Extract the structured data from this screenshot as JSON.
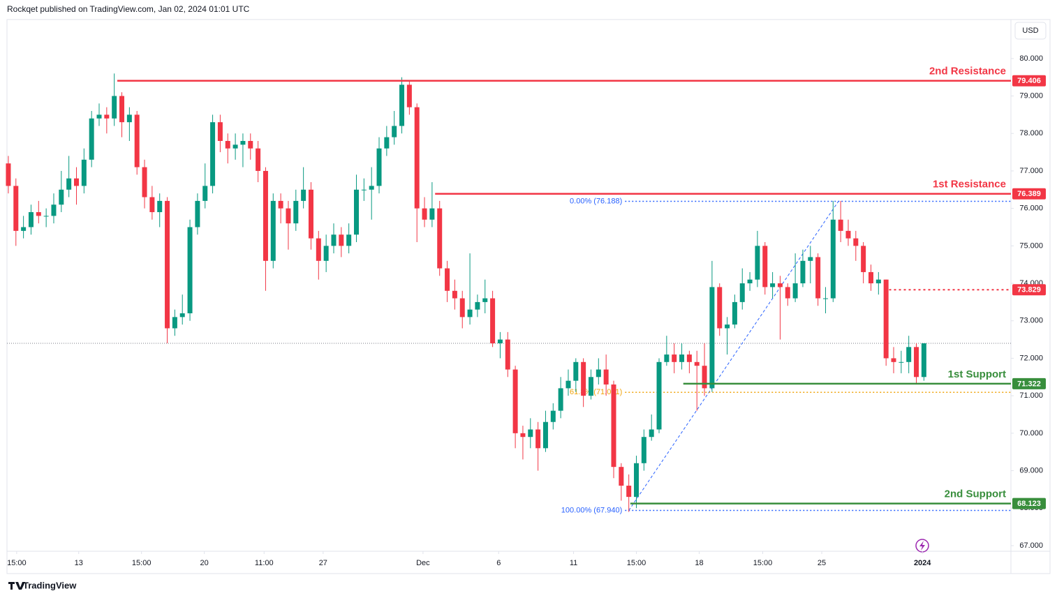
{
  "header": "Rockqet published on TradingView.com, Jan 02, 2024 01:01 UTC",
  "brand": "TradingView",
  "chart_data": {
    "type": "candlestick",
    "currency": "USD",
    "up_color": "#089981",
    "down_color": "#f23645",
    "open": [
      77.2,
      76.6,
      75.4,
      75.5,
      75.9,
      75.8,
      75.8,
      76.1,
      76.5,
      76.8,
      76.6,
      77.3,
      78.4,
      78.5,
      78.4,
      79.0,
      78.3,
      78.5,
      77.1,
      76.3,
      75.9,
      76.2,
      72.8,
      73.1,
      73.2,
      75.5,
      76.2,
      76.6,
      78.3,
      77.8,
      77.6,
      77.7,
      77.8,
      77.6,
      77.0,
      74.6,
      76.2,
      76.0,
      75.6,
      76.2,
      76.5,
      75.2,
      74.6,
      75.0,
      75.3,
      75.0,
      75.3,
      76.5,
      76.5,
      76.6,
      77.6,
      77.9,
      78.2,
      79.3,
      78.7,
      76.0,
      75.7,
      76.0,
      74.4,
      73.8,
      73.6,
      73.1,
      73.3,
      73.5,
      73.6,
      72.4,
      72.5,
      71.7,
      70.0,
      69.9,
      70.1,
      69.6,
      70.3,
      70.6,
      71.2,
      71.4,
      71.9,
      71.0,
      71.5,
      71.7,
      71.3,
      69.1,
      68.6,
      68.3,
      69.2,
      69.9,
      70.1,
      71.9,
      72.1,
      71.9,
      72.1,
      71.9,
      71.8,
      71.2,
      73.9,
      72.8,
      72.9,
      73.5,
      74.0,
      74.1,
      75.0,
      73.9,
      74.0,
      73.9,
      73.6,
      74.0,
      74.6,
      74.7,
      73.6,
      73.6,
      75.7,
      75.4,
      75.2,
      75.0,
      74.3,
      74.0,
      74.1,
      72.0,
      71.9,
      71.9,
      72.3,
      71.5
    ],
    "high": [
      77.4,
      76.8,
      75.8,
      76.1,
      76.2,
      76.0,
      76.4,
      77.0,
      77.4,
      77.1,
      77.6,
      78.6,
      78.8,
      78.7,
      79.6,
      79.1,
      78.7,
      78.6,
      77.3,
      76.6,
      76.4,
      76.3,
      73.3,
      73.7,
      75.7,
      76.4,
      77.2,
      78.5,
      78.5,
      78.0,
      78.0,
      78.0,
      78.0,
      77.8,
      77.1,
      76.4,
      76.4,
      76.2,
      76.5,
      77.1,
      76.7,
      75.4,
      75.3,
      75.6,
      75.5,
      75.6,
      76.9,
      76.8,
      77.1,
      77.9,
      78.2,
      78.6,
      79.5,
      79.4,
      78.8,
      76.3,
      76.7,
      76.2,
      74.6,
      74.1,
      73.8,
      74.8,
      73.7,
      74.1,
      73.8,
      72.7,
      72.7,
      71.8,
      70.2,
      70.4,
      70.3,
      70.6,
      70.8,
      71.5,
      71.7,
      72.0,
      72.0,
      71.7,
      72.0,
      72.1,
      71.4,
      69.2,
      68.9,
      69.4,
      70.1,
      70.5,
      72.0,
      72.6,
      72.4,
      72.4,
      72.2,
      72.2,
      72.4,
      74.6,
      74.0,
      73.1,
      73.7,
      74.4,
      74.3,
      75.4,
      75.1,
      74.3,
      74.2,
      74.0,
      74.8,
      74.9,
      75.0,
      74.8,
      73.9,
      76.2,
      76.2,
      75.7,
      75.4,
      75.1,
      74.5,
      74.3,
      74.1,
      72.3,
      72.2,
      72.6,
      72.4,
      72.4
    ],
    "low": [
      76.4,
      75.0,
      75.2,
      75.3,
      75.6,
      75.5,
      75.6,
      75.9,
      76.3,
      76.1,
      76.4,
      77.1,
      78.2,
      78.0,
      78.2,
      77.9,
      77.8,
      76.9,
      76.0,
      75.7,
      75.5,
      72.4,
      72.6,
      72.9,
      73.0,
      75.3,
      76.0,
      76.4,
      77.5,
      77.2,
      77.3,
      77.1,
      77.3,
      76.7,
      73.8,
      74.4,
      75.6,
      74.9,
      75.4,
      76.0,
      74.9,
      74.1,
      74.3,
      74.8,
      74.7,
      74.8,
      75.1,
      76.2,
      75.7,
      76.4,
      77.4,
      77.7,
      78.0,
      78.5,
      75.1,
      75.5,
      75.5,
      74.2,
      73.5,
      73.3,
      72.8,
      72.9,
      73.1,
      73.2,
      72.3,
      72.0,
      71.5,
      69.6,
      69.3,
      69.6,
      69.0,
      69.5,
      70.1,
      70.4,
      71.0,
      71.1,
      70.7,
      70.9,
      71.3,
      71.0,
      68.8,
      68.2,
      67.9,
      68.0,
      69.0,
      69.8,
      70.0,
      71.8,
      71.6,
      71.7,
      71.6,
      70.6,
      71.0,
      71.1,
      72.6,
      72.1,
      72.8,
      73.3,
      73.8,
      73.9,
      73.7,
      73.6,
      72.5,
      73.4,
      73.5,
      73.9,
      74.0,
      73.4,
      73.2,
      73.5,
      75.1,
      75.0,
      74.6,
      74.0,
      73.8,
      73.7,
      71.8,
      71.6,
      71.6,
      71.6,
      71.3,
      71.4
    ],
    "close": [
      76.6,
      75.4,
      75.5,
      75.9,
      75.8,
      75.8,
      76.1,
      76.5,
      76.8,
      76.6,
      77.3,
      78.4,
      78.5,
      78.4,
      79.0,
      78.3,
      78.5,
      77.1,
      76.3,
      75.9,
      76.2,
      72.8,
      73.1,
      73.2,
      75.5,
      76.2,
      76.6,
      78.3,
      77.8,
      77.6,
      77.7,
      77.8,
      77.6,
      77.0,
      74.6,
      76.2,
      76.0,
      75.6,
      76.2,
      76.5,
      75.2,
      74.6,
      75.0,
      75.3,
      75.0,
      75.3,
      76.5,
      76.5,
      76.6,
      77.6,
      77.9,
      78.2,
      79.3,
      78.7,
      76.0,
      75.7,
      76.0,
      74.4,
      73.8,
      73.6,
      73.1,
      73.3,
      73.5,
      73.6,
      72.4,
      72.5,
      71.7,
      70.0,
      69.9,
      70.1,
      69.6,
      70.3,
      70.6,
      71.2,
      71.4,
      71.9,
      71.0,
      71.5,
      71.7,
      71.3,
      69.1,
      68.6,
      68.3,
      69.2,
      69.9,
      70.1,
      71.9,
      72.1,
      71.9,
      72.1,
      71.9,
      71.8,
      71.2,
      73.9,
      72.8,
      72.9,
      73.5,
      74.0,
      74.1,
      75.0,
      73.9,
      74.0,
      73.9,
      73.6,
      74.0,
      74.6,
      74.7,
      73.6,
      73.6,
      75.7,
      75.4,
      75.2,
      75.0,
      74.3,
      74.0,
      74.1,
      72.0,
      71.9,
      71.9,
      72.3,
      71.5,
      72.4
    ],
    "xlim": [
      -0.18,
      132.5
    ],
    "xticks": [
      {
        "value": 1.1,
        "label": "15:00"
      },
      {
        "value": 9.3,
        "label": "13"
      },
      {
        "value": 17.6,
        "label": "15:00"
      },
      {
        "value": 25.9,
        "label": "20"
      },
      {
        "value": 33.8,
        "label": "11:00"
      },
      {
        "value": 41.6,
        "label": "27"
      },
      {
        "value": 54.8,
        "label": "Dec"
      },
      {
        "value": 64.8,
        "label": "6"
      },
      {
        "value": 74.7,
        "label": "11"
      },
      {
        "value": 83.0,
        "label": "15:00"
      },
      {
        "value": 91.3,
        "label": "18"
      },
      {
        "value": 99.7,
        "label": "15:00"
      },
      {
        "value": 107.5,
        "label": "25"
      },
      {
        "value": 120.8,
        "label": "2024"
      }
    ],
    "ylim": [
      66.85,
      81.04
    ],
    "yticks": [
      {
        "value": 67,
        "label": "67.000"
      },
      {
        "value": 68,
        "label": "68.000"
      },
      {
        "value": 69,
        "label": "69.000"
      },
      {
        "value": 70,
        "label": "70.000"
      },
      {
        "value": 71,
        "label": "71.000"
      },
      {
        "value": 72,
        "label": "72.000"
      },
      {
        "value": 73,
        "label": "73.000"
      },
      {
        "value": 74,
        "label": "74.000"
      },
      {
        "value": 75,
        "label": "75.000"
      },
      {
        "value": 76,
        "label": "76.000"
      },
      {
        "value": 77,
        "label": "77.000"
      },
      {
        "value": 78,
        "label": "78.000"
      },
      {
        "value": 79,
        "label": "79.000"
      },
      {
        "value": 80,
        "label": "80.000"
      }
    ],
    "levels": [
      {
        "name": "2nd Resistance",
        "value": 79.406,
        "from": 14.4,
        "color": "#f23645"
      },
      {
        "name": "1st Resistance",
        "value": 76.389,
        "from": 56.4,
        "color": "#f23645"
      },
      {
        "value": 73.829,
        "from": 116.4,
        "color": "#f23645",
        "dashed": true
      },
      {
        "name": "1st Support",
        "value": 71.322,
        "from": 89.2,
        "color": "#388e3c"
      },
      {
        "name": "2nd Support",
        "value": 68.123,
        "from": 82.2,
        "color": "#388e3c"
      }
    ],
    "fib": {
      "from": 81.5,
      "anchors": [
        82.0,
        109.7
      ],
      "levels": [
        {
          "label": "0.00% (76.188)",
          "value": 76.188,
          "color": "#2962ff"
        },
        {
          "label": "61.8% (71.091)",
          "value": 71.091,
          "color": "#f0a30a"
        },
        {
          "label": "100.00% (67.940)",
          "value": 67.94,
          "color": "#2962ff"
        }
      ]
    }
  }
}
